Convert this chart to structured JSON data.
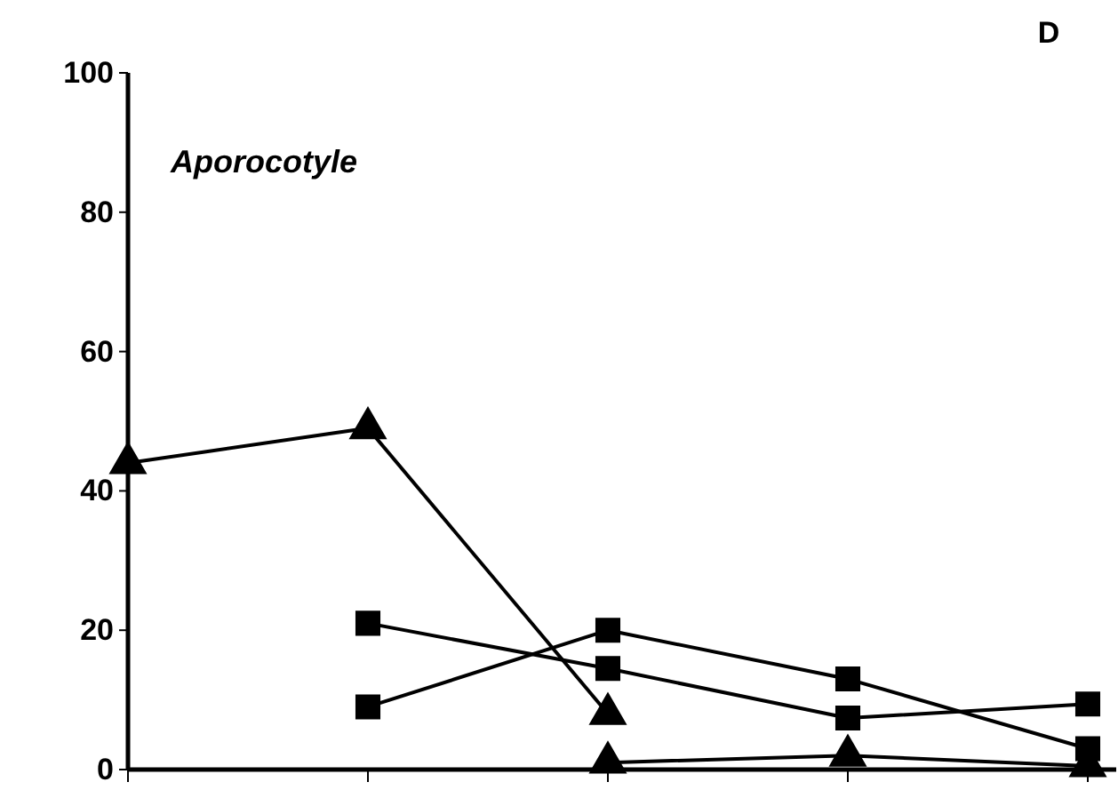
{
  "chart_data": {
    "type": "line",
    "title": "D",
    "annotations": [
      "Aporocotyle"
    ],
    "categories": [
      null,
      null,
      null,
      null,
      null
    ],
    "series": [
      {
        "color": "#000000",
        "marker": "triangle",
        "values": [
          44,
          49,
          8,
          null,
          null
        ]
      },
      {
        "color": "#000000",
        "marker": "square",
        "values": [
          null,
          21,
          14.5,
          7.4,
          9.4
        ]
      },
      {
        "color": "#000000",
        "marker": "square",
        "values": [
          null,
          9,
          20,
          13,
          3
        ]
      },
      {
        "color": "#000000",
        "marker": "triangle",
        "values": [
          null,
          null,
          1,
          2,
          0.5
        ]
      }
    ],
    "ylim": [
      0,
      100
    ],
    "yticks": [
      0,
      20,
      40,
      60,
      80,
      100
    ],
    "grid": false,
    "tick_labels": "y",
    "line_style": "solid"
  }
}
